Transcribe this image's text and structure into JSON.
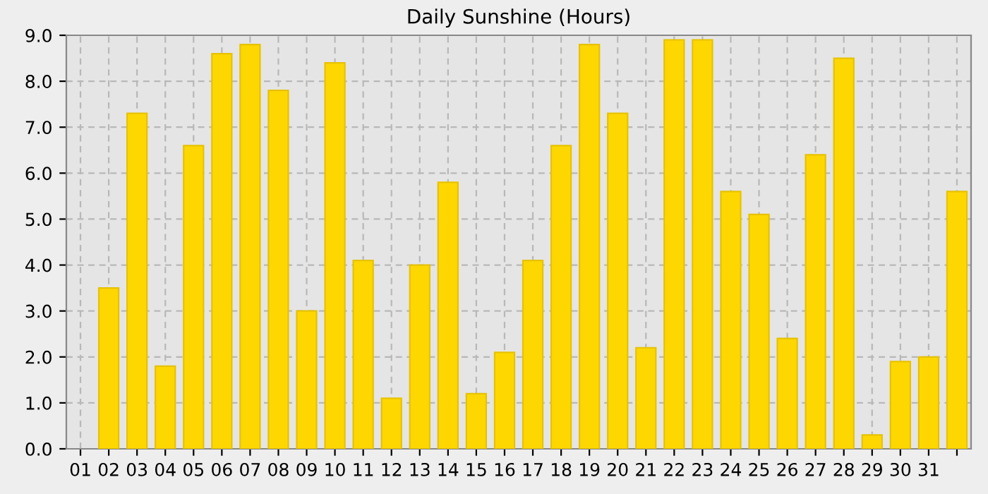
{
  "chart_data": {
    "type": "bar",
    "title": "Daily Sunshine (Hours)",
    "categories": [
      "01",
      "02",
      "03",
      "04",
      "05",
      "06",
      "07",
      "08",
      "09",
      "10",
      "11",
      "12",
      "13",
      "14",
      "15",
      "16",
      "17",
      "18",
      "19",
      "20",
      "21",
      "22",
      "23",
      "24",
      "25",
      "26",
      "27",
      "28",
      "29",
      "30",
      "31",
      null
    ],
    "values": [
      null,
      3.5,
      7.3,
      1.8,
      6.6,
      8.6,
      8.8,
      7.8,
      3.0,
      8.4,
      4.1,
      1.1,
      4.0,
      5.8,
      1.2,
      2.1,
      4.1,
      6.6,
      8.8,
      7.3,
      2.2,
      8.9,
      8.9,
      5.6,
      5.1,
      2.4,
      6.4,
      8.5,
      0.3,
      1.9,
      2.0,
      5.6
    ],
    "color": "#ffd700",
    "ylim": [
      0,
      9
    ],
    "yticks": [
      {
        "value": 0,
        "label": "0.0"
      },
      {
        "value": 1,
        "label": "1.0"
      },
      {
        "value": 2,
        "label": "2.0"
      },
      {
        "value": 3,
        "label": "3.0"
      },
      {
        "value": 4,
        "label": "4.0"
      },
      {
        "value": 5,
        "label": "5.0"
      },
      {
        "value": 6,
        "label": "6.0"
      },
      {
        "value": 7,
        "label": "7.0"
      },
      {
        "value": 8,
        "label": "8.0"
      },
      {
        "value": 9,
        "label": "9.0"
      }
    ],
    "grid": true
  }
}
